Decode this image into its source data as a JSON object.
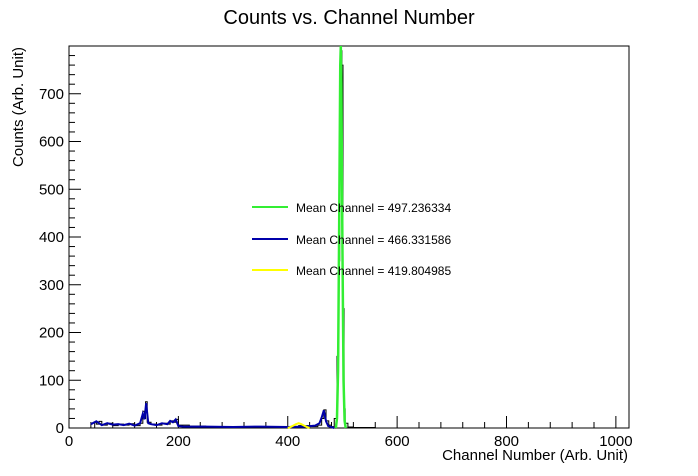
{
  "chart_data": {
    "type": "line",
    "title": "Counts vs. Channel Number",
    "xlabel": "Channel Number (Arb. Unit)",
    "ylabel": "Counts (Arb. Unit)",
    "xlim": [
      0,
      1024
    ],
    "ylim": [
      0,
      800
    ],
    "x_ticks": [
      0,
      200,
      400,
      600,
      800,
      1000
    ],
    "y_ticks": [
      0,
      100,
      200,
      300,
      400,
      500,
      600,
      700
    ],
    "grid": false,
    "legend_position": "center",
    "histogram": {
      "color": "#000000",
      "x": [
        40,
        47,
        50,
        55,
        60,
        70,
        80,
        90,
        100,
        110,
        120,
        130,
        135,
        138,
        140,
        143,
        150,
        160,
        170,
        180,
        185,
        190,
        195,
        200,
        220,
        250,
        300,
        350,
        400,
        420,
        440,
        455,
        462,
        466,
        470,
        475,
        480,
        485,
        490,
        493,
        495,
        497,
        499,
        501,
        503,
        505,
        510,
        520,
        540,
        560,
        600,
        700,
        800,
        900,
        1000
      ],
      "y": [
        0,
        12,
        8,
        14,
        6,
        10,
        5,
        8,
        6,
        9,
        5,
        10,
        35,
        20,
        55,
        12,
        8,
        6,
        10,
        8,
        15,
        12,
        18,
        6,
        4,
        3,
        2,
        3,
        2,
        5,
        3,
        6,
        20,
        38,
        15,
        6,
        3,
        20,
        150,
        350,
        550,
        790,
        760,
        250,
        40,
        10,
        2,
        1,
        1,
        0,
        0,
        0,
        0,
        0,
        0
      ]
    },
    "series": [
      {
        "name": "Mean Channel = 497.236334",
        "color": "#33ee33",
        "x": [
          488,
          490,
          492,
          494,
          496,
          497,
          498,
          500,
          502,
          504,
          506
        ],
        "y": [
          0,
          20,
          120,
          420,
          760,
          800,
          720,
          380,
          100,
          15,
          0
        ]
      },
      {
        "name": "Mean Channel = 466.331586",
        "color": "#0000aa",
        "x": [
          40,
          50,
          60,
          70,
          80,
          90,
          100,
          110,
          120,
          130,
          135,
          138,
          141,
          145,
          150,
          160,
          170,
          180,
          185,
          190,
          195,
          200,
          210,
          250,
          300,
          350,
          400,
          430,
          450,
          458,
          462,
          466,
          470,
          474,
          480,
          485
        ],
        "y": [
          8,
          14,
          6,
          10,
          7,
          8,
          6,
          9,
          5,
          10,
          30,
          18,
          52,
          10,
          8,
          6,
          10,
          8,
          15,
          12,
          18,
          4,
          3,
          3,
          2,
          3,
          2,
          3,
          5,
          10,
          22,
          37,
          14,
          4,
          2,
          0
        ]
      },
      {
        "name": "Mean Channel = 419.804985",
        "color": "#ffff00",
        "x": [
          400,
          405,
          410,
          415,
          420,
          425,
          430,
          435,
          440
        ],
        "y": [
          0,
          2,
          5,
          8,
          10,
          8,
          5,
          2,
          0
        ]
      }
    ]
  }
}
